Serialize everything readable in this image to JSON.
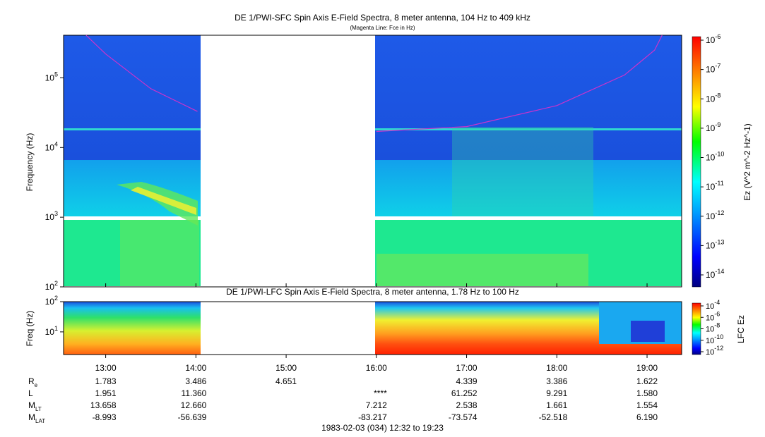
{
  "title_top": "DE 1/PWI-SFC  Spin Axis E-Field Spectra, 8 meter antenna, 104 Hz to 409 kHz",
  "subtitle_top": "(Magenta Line: Fce in Hz)",
  "title_bottom": "DE 1/PWI-LFC  Spin Axis E-Field Spectra, 8 meter antenna, 1.78 Hz to 100 Hz",
  "footer": "1983-02-03 (034) 12:32 to 19:23",
  "colors": {
    "fce_line": "#cc33cc",
    "background_sfc": "#1a4fe0",
    "gap": "#ffffff"
  },
  "chart_data": [
    {
      "type": "heatmap",
      "name": "sfc_spectrogram",
      "ylabel": "Frequency (Hz)",
      "y_scale": "log",
      "ylim": [
        100,
        409000
      ],
      "y_ticks": [
        "10^2",
        "10^3",
        "10^4",
        "10^5"
      ],
      "x_ticks": [
        "13:00",
        "14:00",
        "15:00",
        "16:00",
        "17:00",
        "18:00",
        "19:00"
      ],
      "x_range": [
        "12:32",
        "19:23"
      ],
      "data_gap": [
        "14:02",
        "16:00"
      ],
      "colorbar": {
        "label": "Ez (V^2 m^-2 Hz^-1)",
        "ticks": [
          "10^-6",
          "10^-7",
          "10^-8",
          "10^-9",
          "10^-10",
          "10^-11",
          "10^-12",
          "10^-13",
          "10^-14"
        ]
      },
      "fce_line": {
        "label": "Fce in Hz",
        "segments": [
          {
            "x": [
              "12:47",
              "13:00",
              "13:30",
              "14:01"
            ],
            "y": [
              409000,
              220000,
              70000,
              33000
            ]
          },
          {
            "x": [
              "16:00",
              "17:00",
              "18:00",
              "18:45",
              "19:05",
              "19:10"
            ],
            "y": [
              17000,
              20000,
              40000,
              110000,
              250000,
              409000
            ]
          }
        ]
      }
    },
    {
      "type": "heatmap",
      "name": "lfc_spectrogram",
      "ylabel": "Freq (Hz)",
      "y_scale": "log",
      "ylim": [
        1.78,
        100
      ],
      "y_ticks": [
        "10^1",
        "10^2"
      ],
      "x_ticks": [
        "13:00",
        "14:00",
        "15:00",
        "16:00",
        "17:00",
        "18:00",
        "19:00"
      ],
      "data_gap": [
        "14:02",
        "16:00"
      ],
      "colorbar": {
        "label": "LFC Ez",
        "ticks": [
          "10^-4",
          "10^-6",
          "10^-8",
          "10^-10",
          "10^-12"
        ]
      }
    },
    {
      "type": "table",
      "name": "ephemeris",
      "columns": [
        "13:00",
        "14:00",
        "15:00",
        "16:00",
        "17:00",
        "18:00",
        "19:00"
      ],
      "rows": [
        {
          "label": "R",
          "sub": "e",
          "values": [
            "1.783",
            "3.486",
            "4.651",
            "",
            "4.339",
            "3.386",
            "1.622"
          ]
        },
        {
          "label": "L",
          "sub": "",
          "values": [
            "1.951",
            "11.360",
            "",
            "****",
            "61.252",
            "9.291",
            "1.580"
          ]
        },
        {
          "label": "M",
          "sub": "LT",
          "values": [
            "13.658",
            "12.660",
            "",
            "7.212",
            "2.538",
            "1.661",
            "1.554"
          ]
        },
        {
          "label": "M",
          "sub": "LAT",
          "values": [
            "-8.993",
            "-56.639",
            "",
            "-83.217",
            "-73.574",
            "-52.518",
            "6.190"
          ]
        }
      ]
    }
  ]
}
